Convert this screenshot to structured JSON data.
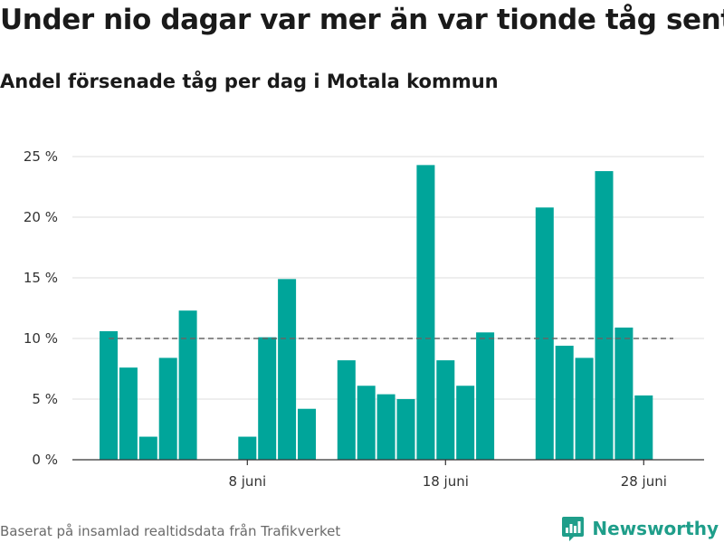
{
  "title": "Under nio dagar var mer än var tionde tåg sent",
  "subtitle": "Andel försenade tåg per dag i Motala kommun",
  "source": "Baserat på insamlad realtidsdata från Trafikverket",
  "brand": {
    "name": "Newsworthy",
    "icon": "newsworthy-logo-icon",
    "color": "#1f9e8a"
  },
  "colors": {
    "bar": "#00a59a",
    "reference_line": "#666666",
    "grid": "#dddddd"
  },
  "chart_data": {
    "type": "bar",
    "title": "Under nio dagar var mer än var tionde tåg sent",
    "subtitle": "Andel försenade tåg per dag i Motala kommun",
    "x_axis": "date",
    "x": [
      "2023-06-01",
      "2023-06-02",
      "2023-06-03",
      "2023-06-04",
      "2023-06-05",
      "2023-06-06",
      "2023-06-07",
      "2023-06-08",
      "2023-06-09",
      "2023-06-10",
      "2023-06-11",
      "2023-06-12",
      "2023-06-13",
      "2023-06-14",
      "2023-06-15",
      "2023-06-16",
      "2023-06-17",
      "2023-06-18",
      "2023-06-19",
      "2023-06-20",
      "2023-06-21",
      "2023-06-22",
      "2023-06-23",
      "2023-06-24",
      "2023-06-25",
      "2023-06-26",
      "2023-06-27",
      "2023-06-28",
      "2023-06-29",
      "2023-06-30"
    ],
    "values": [
      10.6,
      7.6,
      1.9,
      8.4,
      12.3,
      null,
      null,
      1.9,
      10.1,
      14.9,
      4.2,
      null,
      8.2,
      6.1,
      5.4,
      5.0,
      24.3,
      8.2,
      6.1,
      10.5,
      null,
      null,
      20.8,
      9.4,
      8.4,
      23.8,
      10.9,
      5.3,
      null,
      null
    ],
    "ylim": [
      0,
      25
    ],
    "ytick_values": [
      0,
      5,
      10,
      15,
      20,
      25
    ],
    "yticks": [
      "0 %",
      "5 %",
      "10 %",
      "15 %",
      "20 %",
      "25 %"
    ],
    "xticks": [
      {
        "value": "2023-06-08",
        "label": "8 juni"
      },
      {
        "value": "2023-06-18",
        "label": "18 juni"
      },
      {
        "value": "2023-06-28",
        "label": "28 juni"
      }
    ],
    "reference_line": {
      "value": 10,
      "style": "dashed"
    },
    "grid": true,
    "legend": "none"
  }
}
